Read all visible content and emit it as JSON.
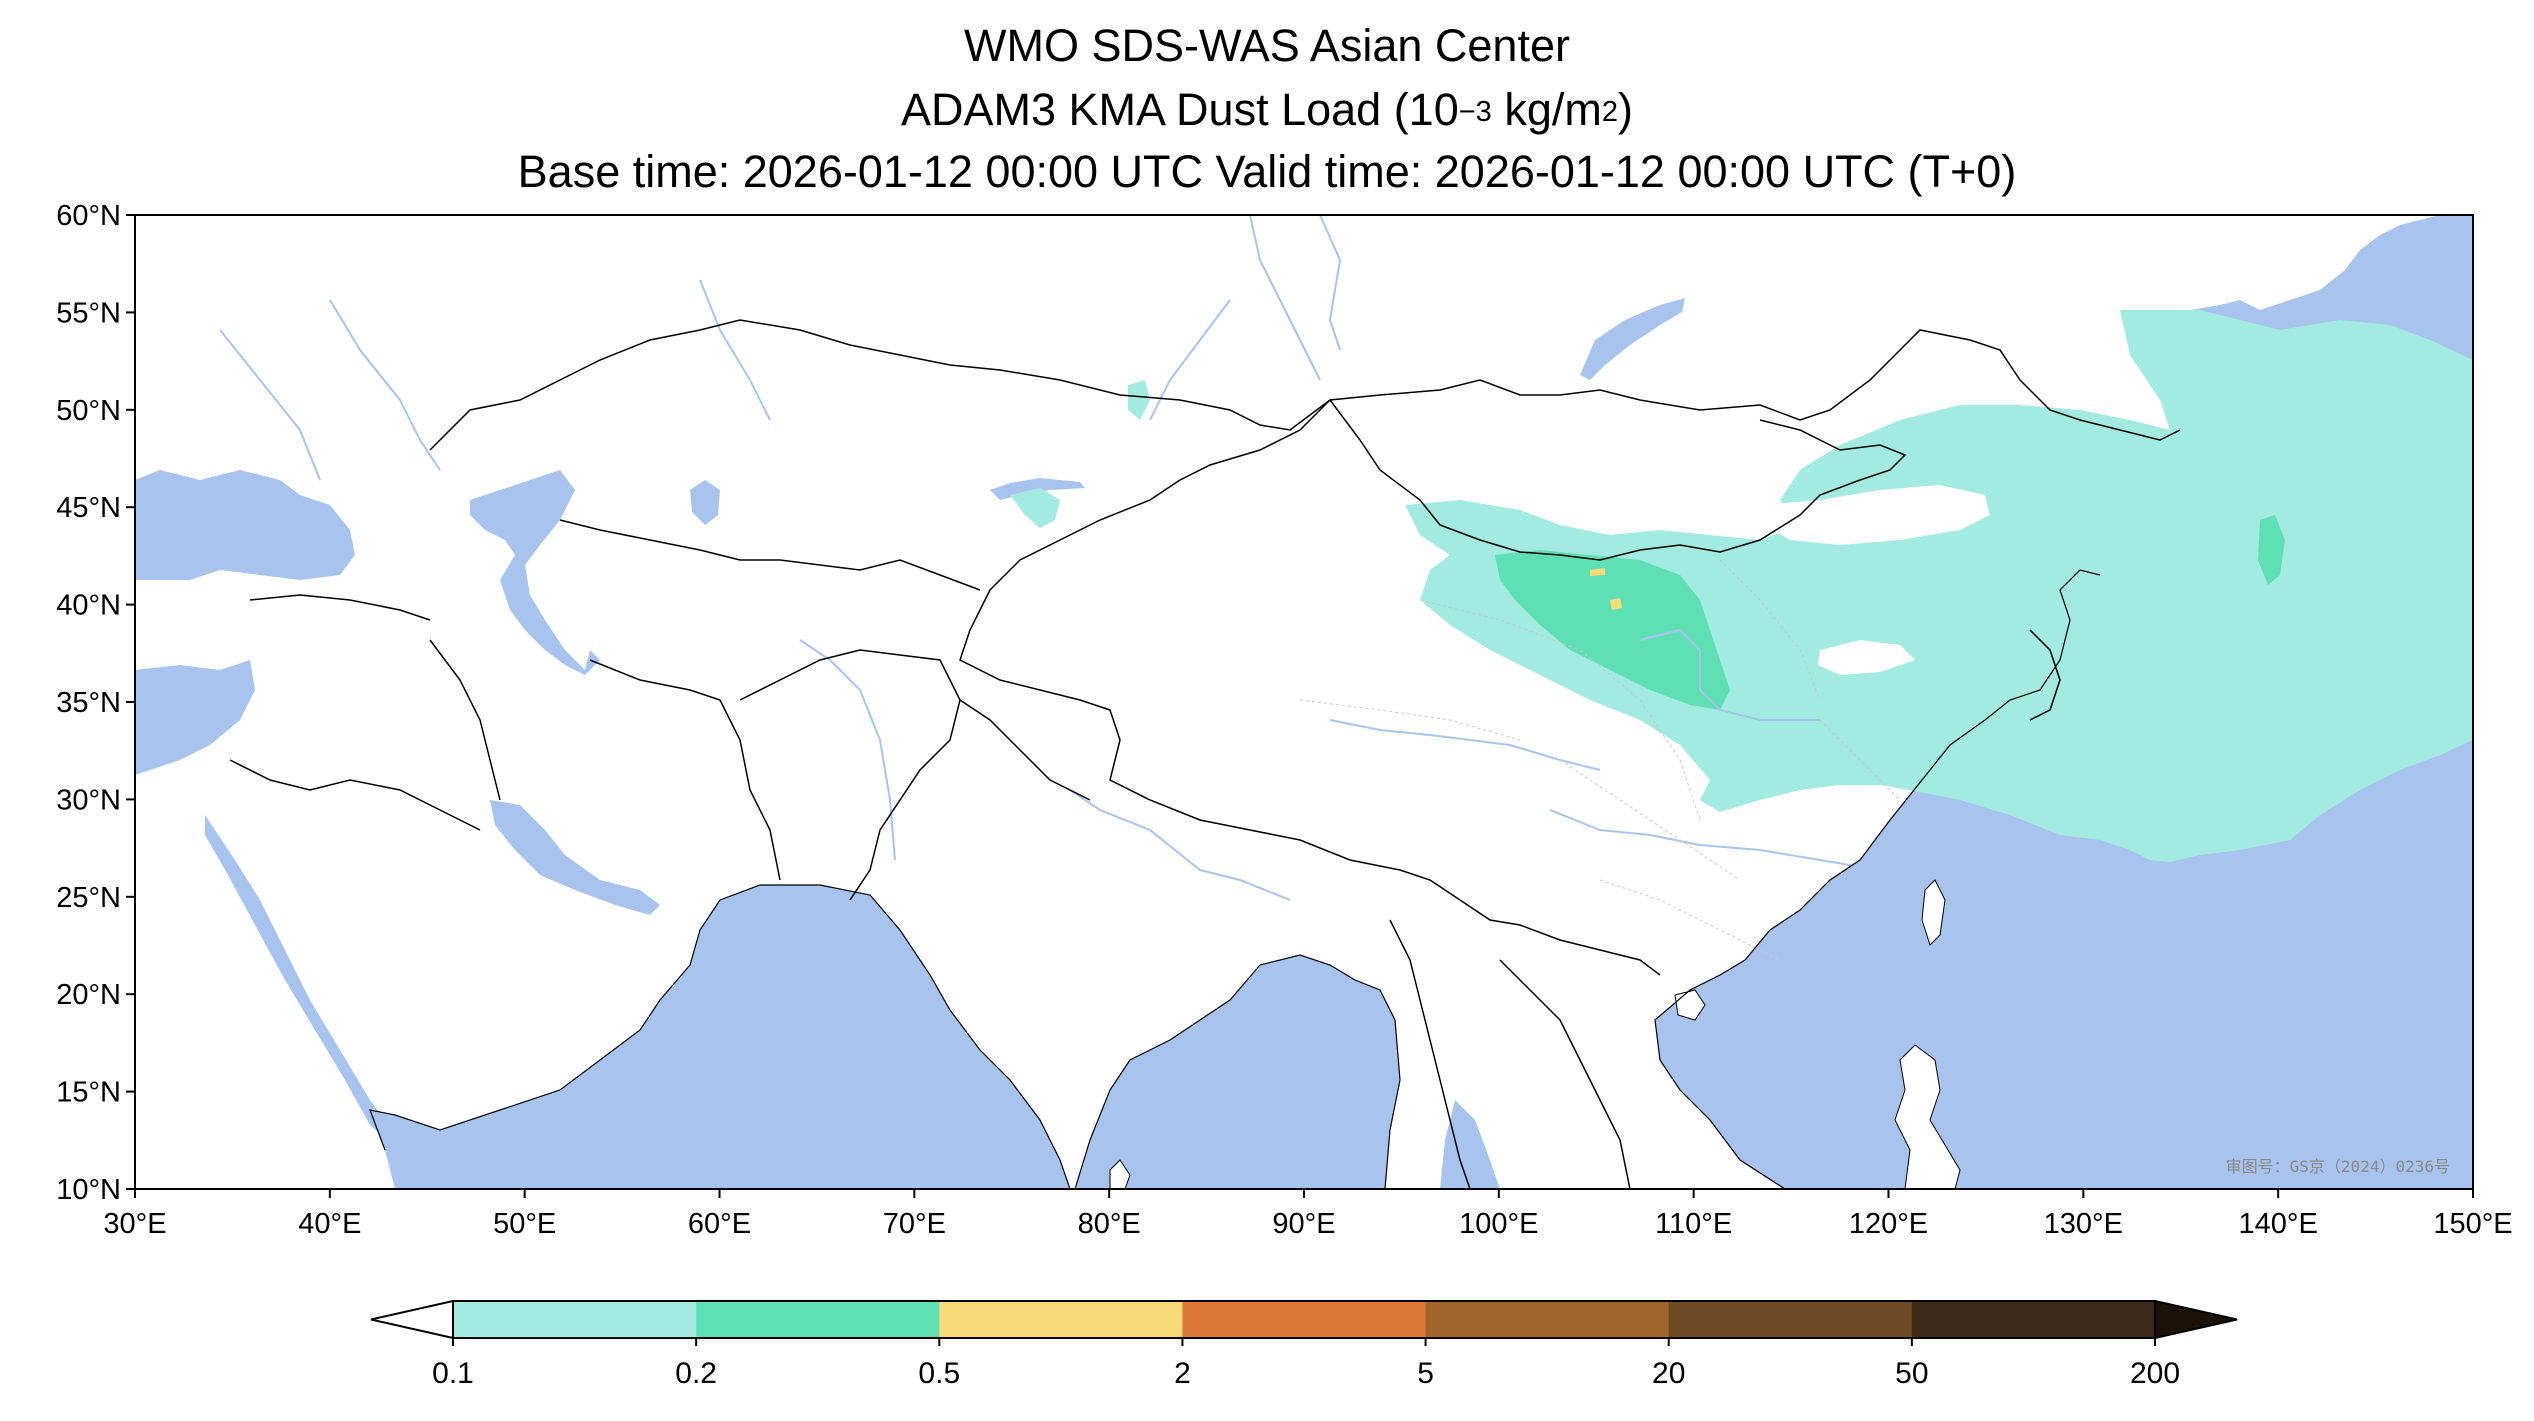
{
  "title": {
    "line1": "WMO SDS-WAS Asian Center",
    "line2_prefix": "ADAM3 KMA Dust Load (10",
    "line2_exp": "−3",
    "line2_mid": " kg/m",
    "line2_exp2": "2",
    "line2_suffix": ")",
    "line3": "Base time: 2026-01-12 00:00 UTC Valid time: 2026-01-12 00:00 UTC (T+0)"
  },
  "map": {
    "lon_range": [
      30,
      150
    ],
    "lat_range": [
      10,
      60
    ],
    "x_ticks": [
      "30°E",
      "40°E",
      "50°E",
      "60°E",
      "70°E",
      "80°E",
      "90°E",
      "100°E",
      "110°E",
      "120°E",
      "130°E",
      "140°E",
      "150°E"
    ],
    "y_ticks": [
      "10°N",
      "15°N",
      "20°N",
      "25°N",
      "30°N",
      "35°N",
      "40°N",
      "45°N",
      "50°N",
      "55°N",
      "60°N"
    ],
    "watermark": "审图号：GS京（2024）0236号",
    "colors": {
      "ocean": "#a8c4ee",
      "land": "#ffffff",
      "border": "#000000",
      "river": "#a8c4ee",
      "province": "#bbbbbb"
    }
  },
  "colorbar": {
    "levels": [
      "0.1",
      "0.2",
      "0.5",
      "2",
      "5",
      "20",
      "50",
      "200"
    ],
    "colors": [
      "#a3ebe0",
      "#5fe0b4",
      "#f8d977",
      "#dd7737",
      "#a0652b",
      "#6e4a24",
      "#3d2a18"
    ],
    "under_color": "#ffffff",
    "over_color": "#1a1209"
  }
}
